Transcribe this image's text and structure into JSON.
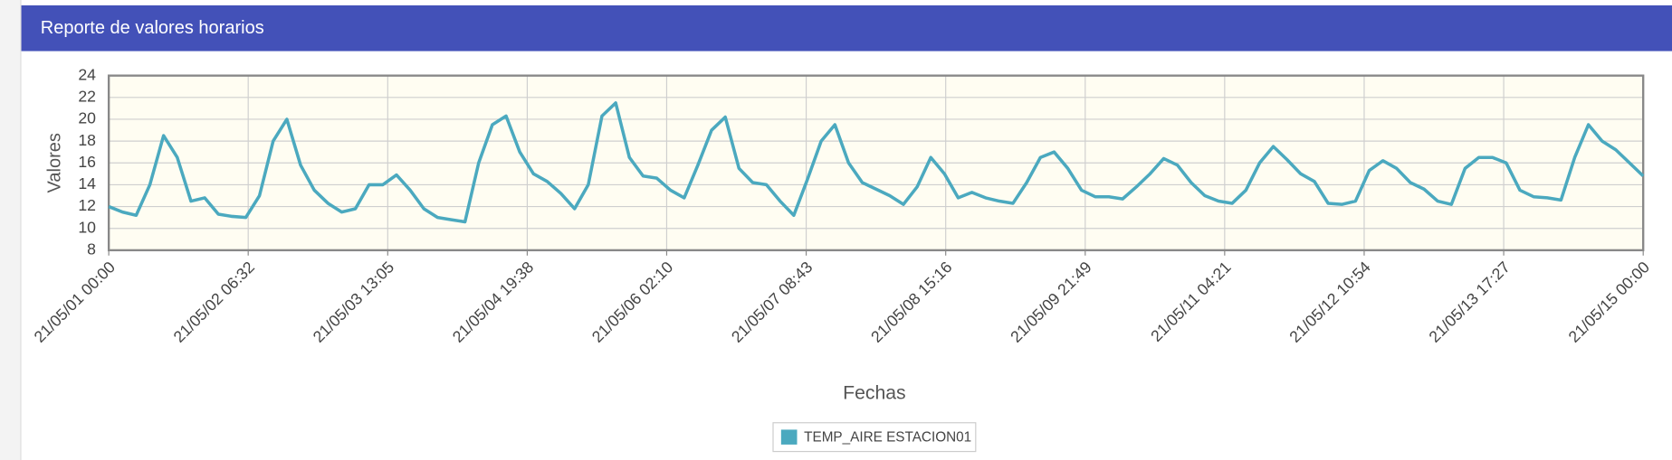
{
  "chart_data": {
    "type": "line",
    "title": "Reporte de valores horarios",
    "x_label": "Fechas",
    "y_label": "Valores",
    "x": [
      "21/05/01 00:00",
      "21/05/01 03:00",
      "21/05/01 06:00",
      "21/05/01 09:00",
      "21/05/01 12:00",
      "21/05/01 15:00",
      "21/05/01 18:00",
      "21/05/01 21:00",
      "21/05/02 00:00",
      "21/05/02 03:00",
      "21/05/02 06:00",
      "21/05/02 09:00",
      "21/05/02 12:00",
      "21/05/02 15:00",
      "21/05/02 18:00",
      "21/05/02 21:00",
      "21/05/03 00:00",
      "21/05/03 03:00",
      "21/05/03 06:00",
      "21/05/03 09:00",
      "21/05/03 12:00",
      "21/05/03 15:00",
      "21/05/03 18:00",
      "21/05/03 21:00",
      "21/05/04 00:00",
      "21/05/04 03:00",
      "21/05/04 06:00",
      "21/05/04 09:00",
      "21/05/04 12:00",
      "21/05/04 15:00",
      "21/05/04 18:00",
      "21/05/04 21:00",
      "21/05/05 00:00",
      "21/05/05 03:00",
      "21/05/05 06:00",
      "21/05/05 09:00",
      "21/05/05 12:00",
      "21/05/05 15:00",
      "21/05/05 18:00",
      "21/05/05 21:00",
      "21/05/06 00:00",
      "21/05/06 03:00",
      "21/05/06 06:00",
      "21/05/06 09:00",
      "21/05/06 12:00",
      "21/05/06 15:00",
      "21/05/06 18:00",
      "21/05/06 21:00",
      "21/05/07 00:00",
      "21/05/07 03:00",
      "21/05/07 06:00",
      "21/05/07 09:00",
      "21/05/07 12:00",
      "21/05/07 15:00",
      "21/05/07 18:00",
      "21/05/07 21:00",
      "21/05/08 00:00",
      "21/05/08 03:00",
      "21/05/08 06:00",
      "21/05/08 09:00",
      "21/05/08 12:00",
      "21/05/08 15:00",
      "21/05/08 18:00",
      "21/05/08 21:00",
      "21/05/09 00:00",
      "21/05/09 03:00",
      "21/05/09 06:00",
      "21/05/09 09:00",
      "21/05/09 12:00",
      "21/05/09 15:00",
      "21/05/09 18:00",
      "21/05/09 21:00",
      "21/05/10 00:00",
      "21/05/10 03:00",
      "21/05/10 06:00",
      "21/05/10 09:00",
      "21/05/10 12:00",
      "21/05/10 15:00",
      "21/05/10 18:00",
      "21/05/10 21:00",
      "21/05/11 00:00",
      "21/05/11 03:00",
      "21/05/11 06:00",
      "21/05/11 09:00",
      "21/05/11 12:00",
      "21/05/11 15:00",
      "21/05/11 18:00",
      "21/05/11 21:00",
      "21/05/12 00:00",
      "21/05/12 03:00",
      "21/05/12 06:00",
      "21/05/12 09:00",
      "21/05/12 12:00",
      "21/05/12 15:00",
      "21/05/12 18:00",
      "21/05/12 21:00",
      "21/05/13 00:00",
      "21/05/13 03:00",
      "21/05/13 06:00",
      "21/05/13 09:00",
      "21/05/13 12:00",
      "21/05/13 15:00",
      "21/05/13 18:00",
      "21/05/13 21:00",
      "21/05/14 00:00",
      "21/05/14 03:00",
      "21/05/14 06:00",
      "21/05/14 09:00",
      "21/05/14 12:00",
      "21/05/14 15:00",
      "21/05/14 18:00",
      "21/05/14 21:00",
      "21/05/15 00:00"
    ],
    "series": [
      {
        "name": "TEMP_AIRE ESTACION01",
        "color": "#4ba9bf",
        "values": [
          12,
          11.5,
          11.2,
          14,
          18.5,
          16.5,
          12.5,
          12.8,
          11.3,
          11.1,
          11,
          13,
          18,
          20,
          15.8,
          13.5,
          12.3,
          11.5,
          11.8,
          14,
          14,
          14.9,
          13.5,
          11.8,
          11,
          10.8,
          10.6,
          16,
          19.5,
          20.3,
          17,
          15,
          14.3,
          13.2,
          11.8,
          14,
          20.3,
          21.5,
          16.5,
          14.8,
          14.6,
          13.5,
          12.8,
          15.8,
          19,
          20.2,
          15.5,
          14.2,
          14,
          12.5,
          11.2,
          14.5,
          18,
          19.5,
          16,
          14.2,
          13.6,
          13,
          12.2,
          13.8,
          16.5,
          15,
          12.8,
          13.3,
          12.8,
          12.5,
          12.3,
          14.2,
          16.5,
          17,
          15.5,
          13.5,
          12.9,
          12.9,
          12.7,
          13.8,
          15,
          16.4,
          15.8,
          14.2,
          13,
          12.5,
          12.3,
          13.5,
          16,
          17.5,
          16.3,
          15,
          14.3,
          12.3,
          12.2,
          12.5,
          15.3,
          16.2,
          15.5,
          14.2,
          13.6,
          12.5,
          12.2,
          15.5,
          16.5,
          16.5,
          16,
          13.5,
          12.9,
          12.8,
          12.6,
          16.5,
          19.5,
          18,
          17.2,
          16,
          14.8
        ]
      }
    ],
    "xlim": [
      "21/05/01 00:00",
      "21/05/15 00:00"
    ],
    "xticks": [
      "21/05/01 00:00",
      "21/05/02 06:32",
      "21/05/03 13:05",
      "21/05/04 19:38",
      "21/05/06 02:10",
      "21/05/07 08:43",
      "21/05/08 15:16",
      "21/05/09 21:49",
      "21/05/11 04:21",
      "21/05/12 10:54",
      "21/05/13 17:27",
      "21/05/15 00:00"
    ],
    "ylim": [
      8,
      24
    ],
    "yticks": [
      8,
      10,
      12,
      14,
      16,
      18,
      20,
      22,
      24
    ],
    "grid": true
  }
}
